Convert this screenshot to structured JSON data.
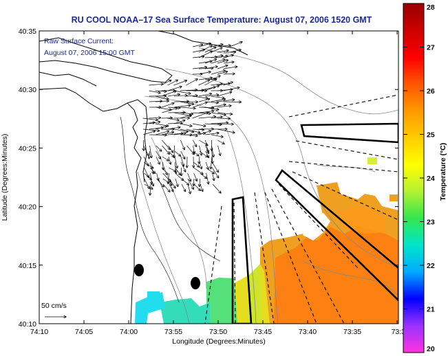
{
  "title": "RU COOL  NOAA–17  Sea Surface Temperature:  August 07, 2006 1520 GMT",
  "annotation": {
    "line1": "Raw Surface Current:",
    "line2": "August 07, 2006 15:00 GMT"
  },
  "x_axis": {
    "label": "Longitude (Degrees:Minutes)",
    "ticks": [
      "74:10",
      "74:05",
      "74:00",
      "73:55",
      "73:50",
      "73:45",
      "73:40",
      "73:35",
      "73:3"
    ]
  },
  "y_axis": {
    "label": "Latitude (Degrees:Minutes)",
    "ticks": [
      "40:35",
      "40:30",
      "40:25",
      "40:20",
      "40:15",
      "40:10"
    ]
  },
  "colorbar": {
    "label": "Temperature (°C)",
    "min": 20,
    "max": 28,
    "ticks": [
      "20",
      "21",
      "22",
      "23",
      "24",
      "25",
      "26",
      "27",
      "28"
    ],
    "colors": [
      "#ff33dd",
      "#9933ff",
      "#0000ff",
      "#00aaff",
      "#00e6cc",
      "#33e64d",
      "#b3f233",
      "#ffff00",
      "#ffcc00",
      "#ff9900",
      "#ff5500",
      "#ff0000",
      "#cc0000",
      "#990000"
    ]
  },
  "scale_bar": {
    "label": "50 cm/s"
  },
  "colors": {
    "title": "#1a2a9c",
    "coast": "#000000",
    "bathymetry": "#888888"
  },
  "chart_data": {
    "type": "heatmap",
    "title": "RU COOL  NOAA–17  Sea Surface Temperature:  August 07, 2006 1520 GMT",
    "xlabel": "Longitude (Degrees:Minutes)",
    "ylabel": "Latitude (Degrees:Minutes)",
    "xlim": [
      "74:10",
      "73:30"
    ],
    "ylim": [
      "40:10",
      "40:35"
    ],
    "value_range": [
      20,
      28
    ],
    "sst_patches": [
      {
        "lon": "73:38",
        "lat": "40:14",
        "temp_c": 26.0
      },
      {
        "lon": "73:44",
        "lat": "40:13",
        "temp_c": 25.6
      },
      {
        "lon": "73:48",
        "lat": "40:12",
        "temp_c": 25.0
      },
      {
        "lon": "73:51",
        "lat": "40:12",
        "temp_c": 24.5
      },
      {
        "lon": "73:55",
        "lat": "40:11",
        "temp_c": 23.6
      },
      {
        "lon": "73:59",
        "lat": "40:11",
        "temp_c": 23.4
      },
      {
        "lon": "73:35",
        "lat": "40:19",
        "temp_c": 25.8
      }
    ],
    "grid": false,
    "legend": "colorbar-right"
  }
}
